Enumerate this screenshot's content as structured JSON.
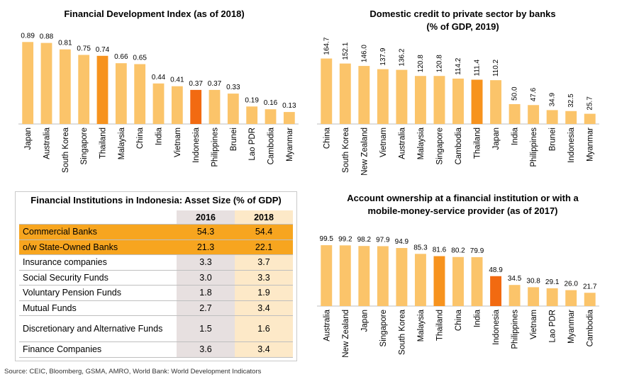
{
  "colors": {
    "bar": "#fbc46a",
    "highlight": "#f7931e",
    "indonesia": "#f26a11",
    "table_orange": "#f7a51f"
  },
  "chart_data": [
    {
      "type": "bar",
      "title": "Financial Development Index (as of 2018)",
      "categories": [
        "Japan",
        "Australia",
        "South Korea",
        "Singapore",
        "Thailand",
        "Malaysia",
        "China",
        "India",
        "Vietnam",
        "Indonesia",
        "Philippines",
        "Brunei",
        "Lao PDR",
        "Cambodia",
        "Myanmar"
      ],
      "values": [
        0.89,
        0.88,
        0.81,
        0.75,
        0.74,
        0.66,
        0.65,
        0.44,
        0.41,
        0.37,
        0.37,
        0.33,
        0.19,
        0.16,
        0.13
      ],
      "value_labels": [
        "0.89",
        "0.88",
        "0.81",
        "0.75",
        "0.74",
        "0.66",
        "0.65",
        "0.44",
        "0.41",
        "0.37",
        "0.37",
        "0.33",
        "0.19",
        "0.16",
        "0.13"
      ],
      "highlight": [
        "Thailand",
        "Indonesia"
      ],
      "ylim": [
        0,
        1
      ]
    },
    {
      "type": "bar",
      "title": "Domestic credit to private sector by banks (% of GDP, 2019)",
      "title_lines": [
        "Domestic credit to private sector by banks",
        "(% of GDP, 2019)"
      ],
      "categories": [
        "China",
        "South Korea",
        "New Zealand",
        "Vietnam",
        "Australia",
        "Malaysia",
        "Singapore",
        "Cambodia",
        "Thailand",
        "Japan",
        "India",
        "Philippines",
        "Brunei",
        "Indonesia",
        "Myanmar"
      ],
      "values": [
        164.7,
        152.1,
        146.0,
        137.9,
        136.2,
        120.8,
        120.8,
        114.2,
        111.4,
        110.2,
        50.0,
        47.6,
        34.9,
        32.5,
        25.7
      ],
      "value_labels": [
        "164.7",
        "152.1",
        "146.0",
        "137.9",
        "136.2",
        "120.8",
        "120.8",
        "114.2",
        "111.4",
        "110.2",
        "50.0",
        "47.6",
        "34.9",
        "32.5",
        "25.7"
      ],
      "highlight": [
        "Thailand"
      ],
      "ylim": [
        0,
        180
      ]
    },
    {
      "type": "bar",
      "title": "Account ownership at a financial institution or with a mobile-money-service provider (as of 2017)",
      "title_lines": [
        "Account ownership at a financial institution or with a",
        "mobile-money-service provider (as of 2017)"
      ],
      "categories": [
        "Australia",
        "New Zealand",
        "Japan",
        "Singapore",
        "South Korea",
        "Malaysia",
        "Thailand",
        "China",
        "India",
        "Indonesia",
        "Philippines",
        "Vietnam",
        "Lao PDR",
        "Myanmar",
        "Cambodia"
      ],
      "values": [
        99.5,
        99.2,
        98.2,
        97.9,
        94.9,
        85.3,
        81.6,
        80.2,
        79.9,
        48.9,
        34.5,
        30.8,
        29.1,
        26.0,
        21.7
      ],
      "value_labels": [
        "99.5",
        "99.2",
        "98.2",
        "97.9",
        "94.9",
        "85.3",
        "81.6",
        "80.2",
        "79.9",
        "48.9",
        "34.5",
        "30.8",
        "29.1",
        "26.0",
        "21.7"
      ],
      "highlight": [
        "Thailand",
        "Indonesia"
      ],
      "ylim": [
        0,
        110
      ]
    },
    {
      "type": "table",
      "title": "Financial Institutions in Indonesia: Asset Size (% of GDP)",
      "columns": [
        "",
        "2016",
        "2018"
      ],
      "rows": [
        {
          "label": "Commercial Banks",
          "v2016": "54.3",
          "v2018": "54.4",
          "highlight": true
        },
        {
          "label": "o/w State-Owned Banks",
          "v2016": "21.3",
          "v2018": "22.1",
          "highlight": true
        },
        {
          "label": "Insurance companies",
          "v2016": "3.3",
          "v2018": "3.7"
        },
        {
          "label": "Social Security Funds",
          "v2016": "3.0",
          "v2018": "3.3"
        },
        {
          "label": "Voluntary Pension Funds",
          "v2016": "1.8",
          "v2018": "1.9"
        },
        {
          "label": "Mutual Funds",
          "v2016": "2.7",
          "v2018": "3.4"
        },
        {
          "label": "Discretionary and Alternative Funds",
          "v2016": "1.5",
          "v2018": "1.6",
          "tall": true
        },
        {
          "label": "Finance Companies",
          "v2016": "3.6",
          "v2018": "3.4"
        }
      ]
    }
  ],
  "source": "Source: CEIC, Bloomberg, GSMA, AMRO, World Bank: World Development Indicators"
}
